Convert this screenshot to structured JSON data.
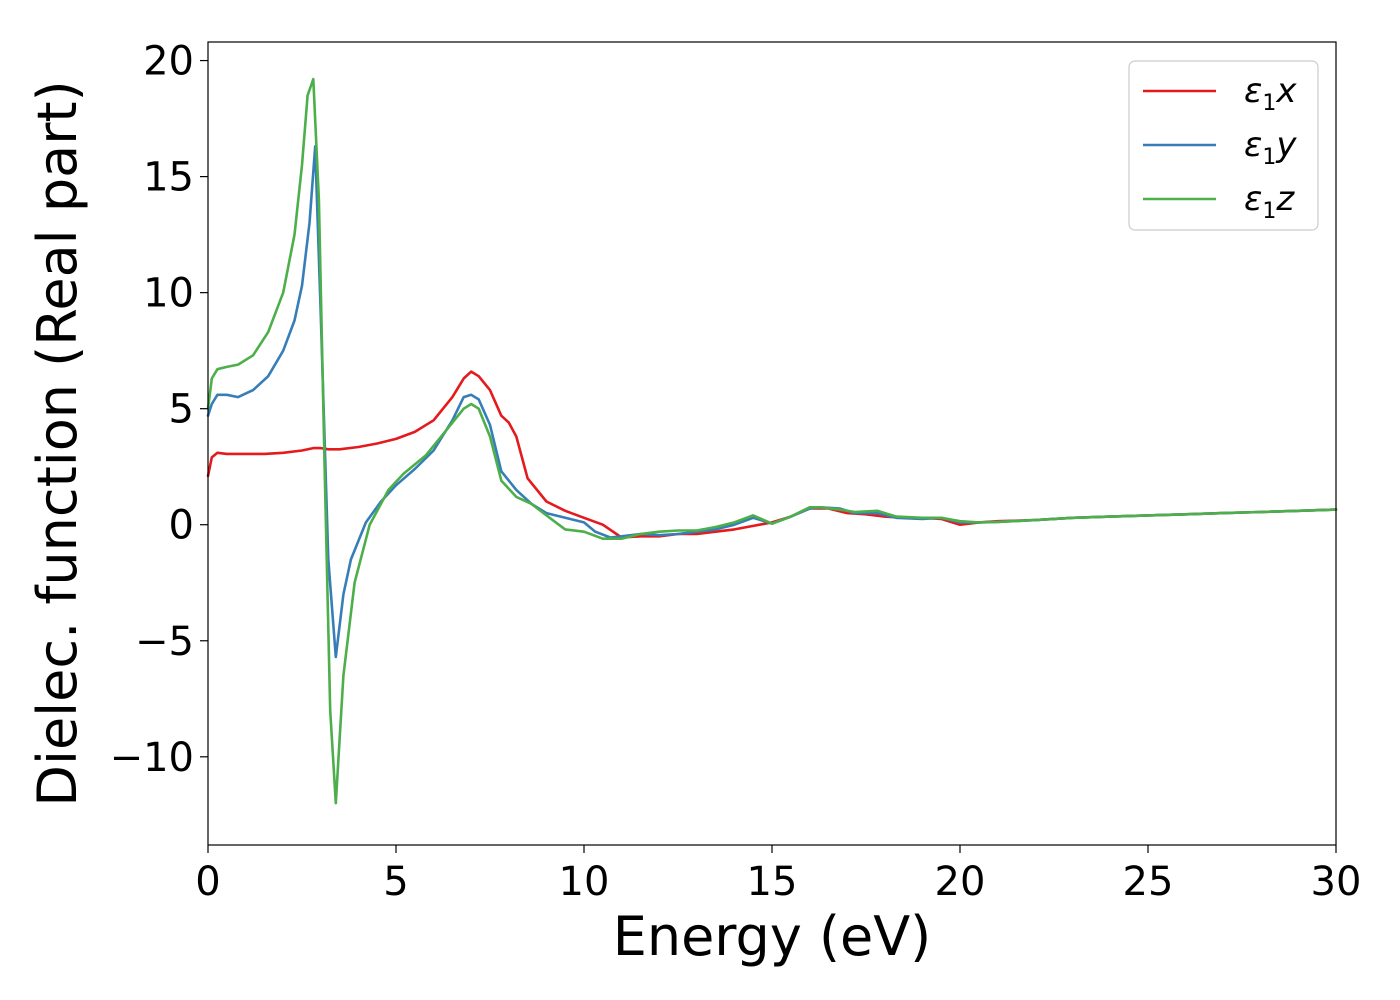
{
  "chart_data": {
    "type": "line",
    "xlabel": "Energy (eV)",
    "ylabel": "Dielec. function (Real part)",
    "xlim": [
      0,
      30
    ],
    "ylim": [
      -13.8,
      20.8
    ],
    "xticks": [
      0,
      5,
      10,
      15,
      20,
      25,
      30
    ],
    "yticks": [
      -10,
      -5,
      0,
      5,
      10,
      15,
      20
    ],
    "xtick_labels": [
      "0",
      "5",
      "10",
      "15",
      "20",
      "25",
      "30"
    ],
    "ytick_labels": [
      "−10",
      "−5",
      "0",
      "5",
      "10",
      "15",
      "20"
    ],
    "grid": false,
    "legend_position": "top-right",
    "series": [
      {
        "name": "ε₁x",
        "legend_main": "ε",
        "legend_sub": "1",
        "legend_tail": "x",
        "color": "#e41a1c",
        "x": [
          0,
          0.1,
          0.25,
          0.5,
          1,
          1.5,
          2,
          2.5,
          2.8,
          3.0,
          3.2,
          3.5,
          4.0,
          4.5,
          5.0,
          5.5,
          6.0,
          6.5,
          6.8,
          7.0,
          7.2,
          7.5,
          7.8,
          8.0,
          8.2,
          8.5,
          9.0,
          9.5,
          10.0,
          10.5,
          11.0,
          11.5,
          12.0,
          12.5,
          13.0,
          13.5,
          14.0,
          14.5,
          15.0,
          15.5,
          16.0,
          16.5,
          17.0,
          17.5,
          18.0,
          18.5,
          19.0,
          19.5,
          20.0,
          20.5,
          21.0,
          22.0,
          23.0,
          24.0,
          25.0,
          26.0,
          27.0,
          28.0,
          29.0,
          30.0
        ],
        "y": [
          2.1,
          2.9,
          3.1,
          3.05,
          3.05,
          3.05,
          3.1,
          3.2,
          3.3,
          3.3,
          3.25,
          3.25,
          3.35,
          3.5,
          3.7,
          4.0,
          4.5,
          5.5,
          6.3,
          6.6,
          6.4,
          5.8,
          4.7,
          4.4,
          3.8,
          2.0,
          1.0,
          0.6,
          0.3,
          0.0,
          -0.55,
          -0.5,
          -0.5,
          -0.4,
          -0.4,
          -0.3,
          -0.2,
          -0.05,
          0.1,
          0.35,
          0.7,
          0.7,
          0.5,
          0.45,
          0.35,
          0.3,
          0.3,
          0.25,
          0.0,
          0.1,
          0.15,
          0.2,
          0.3,
          0.35,
          0.4,
          0.45,
          0.5,
          0.55,
          0.6,
          0.65
        ]
      },
      {
        "name": "ε₁y",
        "legend_main": "ε",
        "legend_sub": "1",
        "legend_tail": "y",
        "color": "#377eb8",
        "x": [
          0,
          0.1,
          0.25,
          0.5,
          0.8,
          1.2,
          1.6,
          2.0,
          2.3,
          2.5,
          2.7,
          2.85,
          3.0,
          3.2,
          3.4,
          3.6,
          3.8,
          4.2,
          4.6,
          5.0,
          5.5,
          6.0,
          6.5,
          6.8,
          7.0,
          7.2,
          7.5,
          7.8,
          8.2,
          8.6,
          9.0,
          9.5,
          10.0,
          10.3,
          10.7,
          11.0,
          11.5,
          12.0,
          12.5,
          13.0,
          13.5,
          14.0,
          14.5,
          15.0,
          15.5,
          16.0,
          16.3,
          16.8,
          17.2,
          17.8,
          18.3,
          19.0,
          19.5,
          20.0,
          20.5,
          21.0,
          22.0,
          23.0,
          24.0,
          25.0,
          26.0,
          27.0,
          28.0,
          29.0,
          30.0
        ],
        "y": [
          4.7,
          5.2,
          5.6,
          5.6,
          5.5,
          5.8,
          6.4,
          7.5,
          8.8,
          10.3,
          13.0,
          16.3,
          9.0,
          -1.5,
          -5.7,
          -3.0,
          -1.5,
          0.1,
          1.0,
          1.7,
          2.4,
          3.2,
          4.5,
          5.5,
          5.6,
          5.4,
          4.3,
          2.3,
          1.5,
          0.9,
          0.5,
          0.3,
          0.1,
          -0.3,
          -0.55,
          -0.5,
          -0.4,
          -0.45,
          -0.4,
          -0.3,
          -0.2,
          0.0,
          0.3,
          0.05,
          0.35,
          0.7,
          0.75,
          0.7,
          0.5,
          0.5,
          0.3,
          0.25,
          0.3,
          0.1,
          0.1,
          0.12,
          0.2,
          0.3,
          0.35,
          0.4,
          0.45,
          0.5,
          0.55,
          0.6,
          0.65
        ]
      },
      {
        "name": "ε₁z",
        "legend_main": "ε",
        "legend_sub": "1",
        "legend_tail": "z",
        "color": "#4daf4a",
        "x": [
          0,
          0.1,
          0.25,
          0.5,
          0.8,
          1.2,
          1.6,
          2.0,
          2.3,
          2.5,
          2.65,
          2.8,
          2.95,
          3.1,
          3.25,
          3.4,
          3.6,
          3.9,
          4.3,
          4.8,
          5.2,
          5.8,
          6.3,
          6.8,
          7.0,
          7.2,
          7.5,
          7.8,
          8.2,
          8.6,
          9.0,
          9.5,
          10.0,
          10.5,
          11.0,
          11.5,
          12.0,
          12.5,
          13.0,
          13.5,
          14.0,
          14.5,
          15.0,
          15.5,
          16.0,
          16.3,
          16.8,
          17.2,
          17.8,
          18.3,
          19.0,
          19.5,
          20.0,
          20.5,
          21.0,
          22.0,
          23.0,
          24.0,
          25.0,
          26.0,
          27.0,
          28.0,
          29.0,
          30.0
        ],
        "y": [
          5.0,
          6.3,
          6.7,
          6.8,
          6.9,
          7.3,
          8.3,
          10.0,
          12.5,
          15.5,
          18.5,
          19.2,
          14.0,
          2.5,
          -8.0,
          -12.0,
          -6.5,
          -2.5,
          0.0,
          1.5,
          2.2,
          3.0,
          4.0,
          5.0,
          5.2,
          5.0,
          3.8,
          1.9,
          1.2,
          0.9,
          0.4,
          -0.2,
          -0.3,
          -0.6,
          -0.6,
          -0.4,
          -0.3,
          -0.25,
          -0.25,
          -0.1,
          0.1,
          0.4,
          0.05,
          0.35,
          0.75,
          0.75,
          0.65,
          0.55,
          0.6,
          0.35,
          0.3,
          0.3,
          0.15,
          0.1,
          0.12,
          0.2,
          0.3,
          0.35,
          0.4,
          0.45,
          0.5,
          0.55,
          0.6,
          0.65
        ]
      }
    ]
  }
}
